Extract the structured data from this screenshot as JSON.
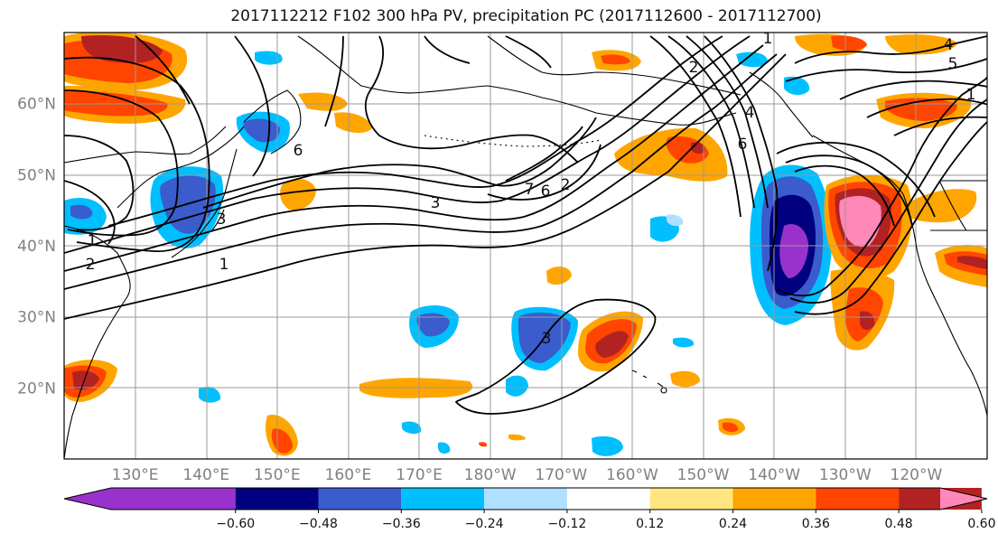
{
  "title": "2017112212 F102 300 hPa PV, precipitation PC (2017112600 - 2017112700)",
  "map": {
    "projection": "equirectangular",
    "lon_range": [
      120,
      250
    ],
    "lat_range": [
      10,
      70
    ],
    "lat_ticks": [
      {
        "label": "60°N"
      },
      {
        "label": "50°N"
      },
      {
        "label": "40°N"
      },
      {
        "label": "30°N"
      },
      {
        "label": "20°N"
      }
    ],
    "lon_ticks": [
      {
        "label": "130°E"
      },
      {
        "label": "140°E"
      },
      {
        "label": "150°E"
      },
      {
        "label": "160°E"
      },
      {
        "label": "170°E"
      },
      {
        "label": "180°W"
      },
      {
        "label": "170°W"
      },
      {
        "label": "160°W"
      },
      {
        "label": "150°W"
      },
      {
        "label": "140°W"
      },
      {
        "label": "130°W"
      },
      {
        "label": "120°W"
      }
    ],
    "contour_labels": [
      "1",
      "2",
      "3",
      "6",
      "7",
      "6",
      "2",
      "3",
      "4",
      "5",
      "1",
      "1",
      "2",
      "1",
      "4",
      "6",
      "3"
    ]
  },
  "colorbar": {
    "ticks": [
      "−0.60",
      "−0.48",
      "−0.36",
      "−0.24",
      "−0.12",
      "0.12",
      "0.24",
      "0.36",
      "0.48",
      "0.60"
    ],
    "colors": [
      "#9932cc",
      "#000080",
      "#3a5ccc",
      "#00bfff",
      "#b0e0ff",
      "#ffffff",
      "#ffe680",
      "#ffa500",
      "#ff4500",
      "#b22222",
      "#ff88b8"
    ]
  }
}
